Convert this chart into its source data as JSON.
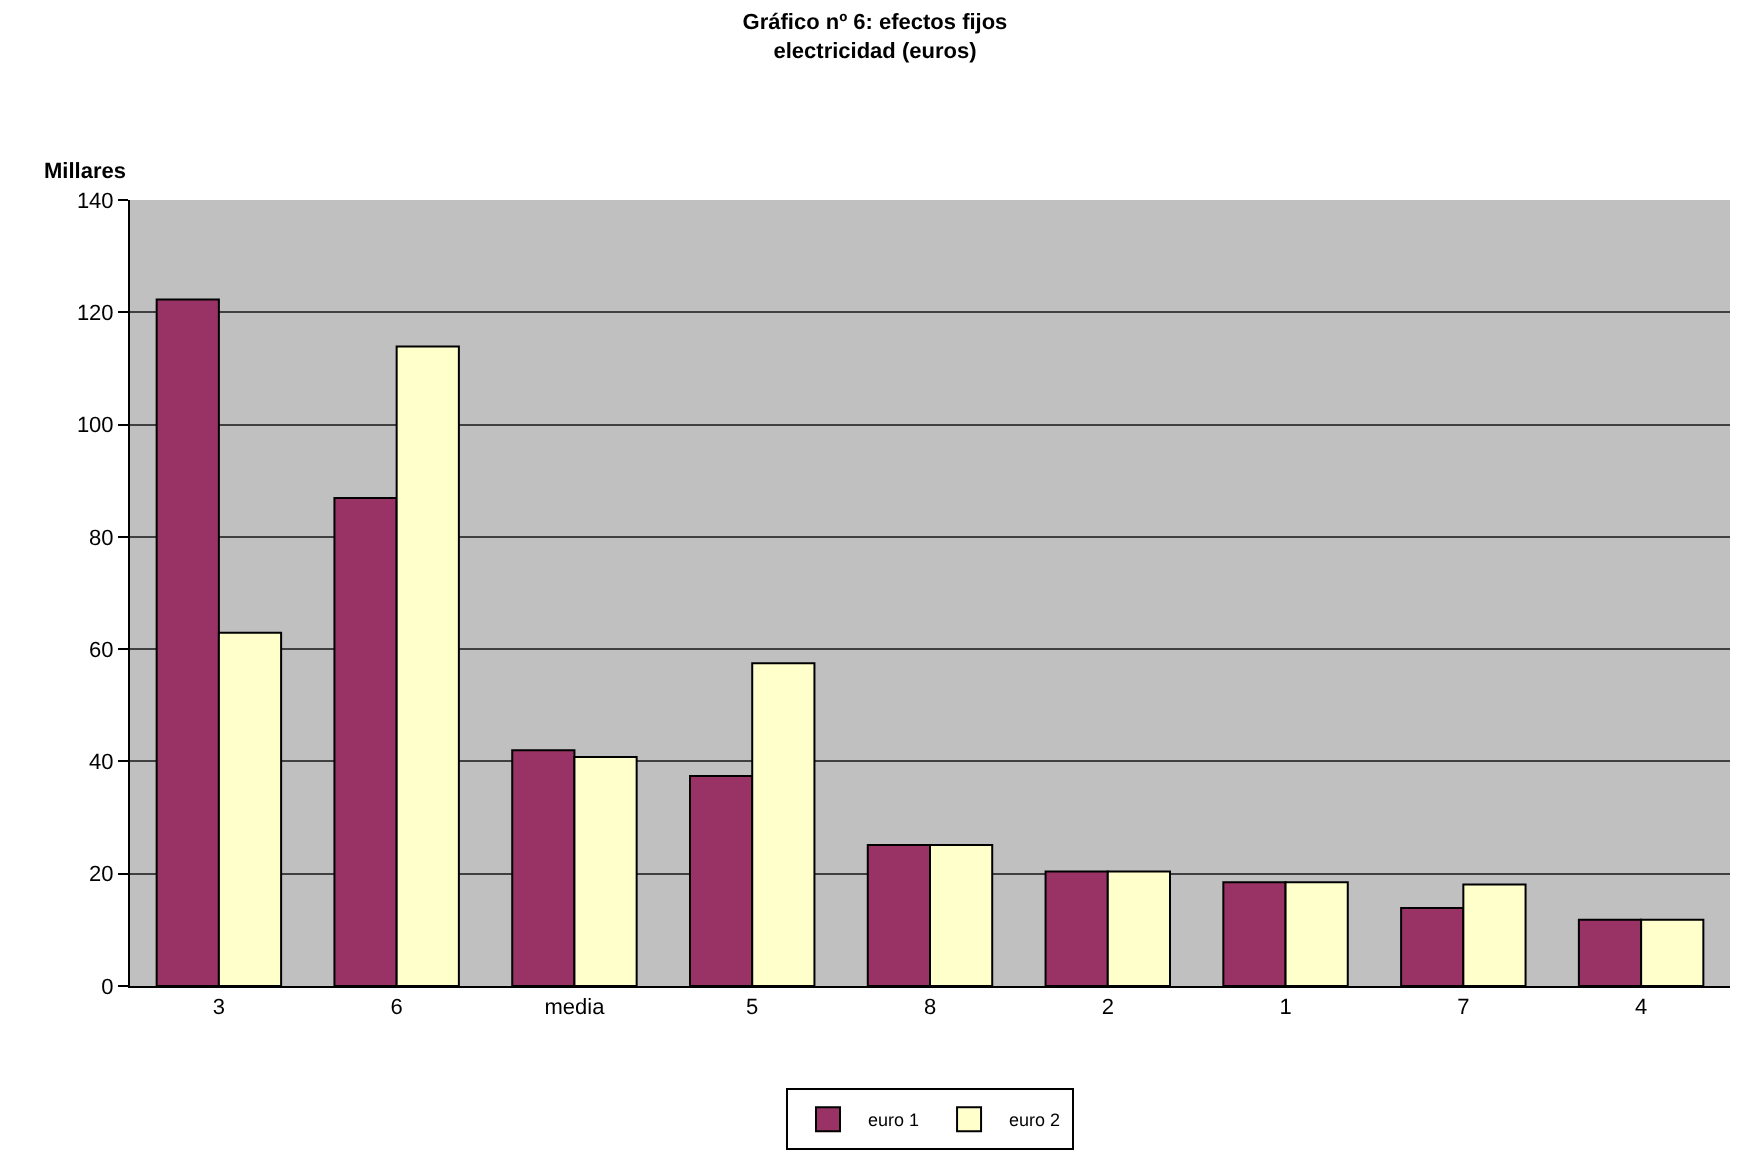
{
  "chart_data": {
    "type": "bar",
    "title": "Gráfico nº 6: efectos fijos\nelectricidad (euros)",
    "ylabel": "Millares",
    "categories": [
      "3",
      "6",
      "media",
      "5",
      "8",
      "2",
      "1",
      "7",
      "4"
    ],
    "series": [
      {
        "name": "euro 1",
        "color": "#993366",
        "values": [
          122.3,
          86.9,
          42.0,
          37.4,
          25.1,
          20.4,
          18.5,
          13.9,
          11.8
        ]
      },
      {
        "name": "euro 2",
        "color": "#ffffcc",
        "values": [
          62.9,
          113.9,
          40.8,
          57.5,
          25.1,
          20.4,
          18.5,
          18.1,
          11.8
        ]
      }
    ],
    "ylim": [
      0,
      140
    ],
    "yticks": [
      0,
      20,
      40,
      60,
      80,
      100,
      120,
      140
    ],
    "grid": "y",
    "legend": "bottom"
  }
}
